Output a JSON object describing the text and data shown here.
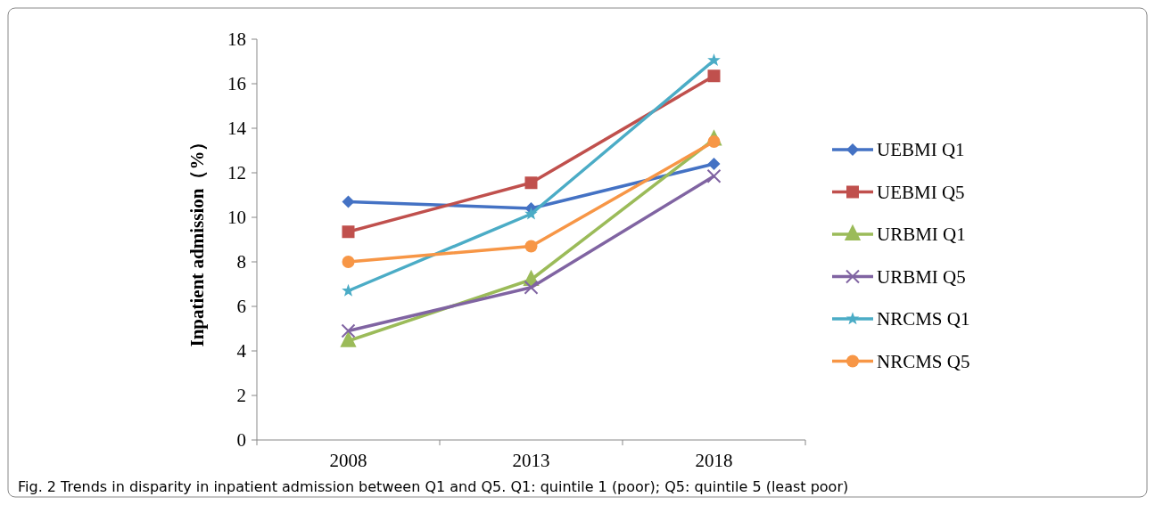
{
  "chart_data": {
    "type": "line",
    "ylabel": "Inpatient admission（%）",
    "categories": [
      "2008",
      "2013",
      "2018"
    ],
    "ylim": [
      0,
      18
    ],
    "yticks": [
      0,
      2,
      4,
      6,
      8,
      10,
      12,
      14,
      16,
      18
    ],
    "grid": false,
    "legend": "right",
    "series": [
      {
        "name": "UEBMI Q1",
        "color": "#4472c4",
        "marker": "diamond",
        "values": [
          10.7,
          10.4,
          12.4
        ]
      },
      {
        "name": "UEBMI Q5",
        "color": "#c0504d",
        "marker": "square",
        "values": [
          9.35,
          11.55,
          16.35
        ]
      },
      {
        "name": "URBMI Q1",
        "color": "#9bbb59",
        "marker": "triangle",
        "values": [
          4.45,
          7.2,
          13.5
        ]
      },
      {
        "name": "URBMI Q5",
        "color": "#8064a2",
        "marker": "cross",
        "values": [
          4.9,
          6.85,
          11.85
        ]
      },
      {
        "name": "NRCMS Q1",
        "color": "#4bacc6",
        "marker": "star",
        "values": [
          6.7,
          10.15,
          17.05
        ]
      },
      {
        "name": "NRCMS Q5",
        "color": "#f79646",
        "marker": "circle",
        "values": [
          8.0,
          8.7,
          13.4
        ]
      }
    ],
    "annotations": [
      "Fig. 2  Trends in disparity in inpatient admission between Q1 and Q5. Q1: quintile 1 (poor); Q5: quintile 5 (least poor)"
    ]
  }
}
